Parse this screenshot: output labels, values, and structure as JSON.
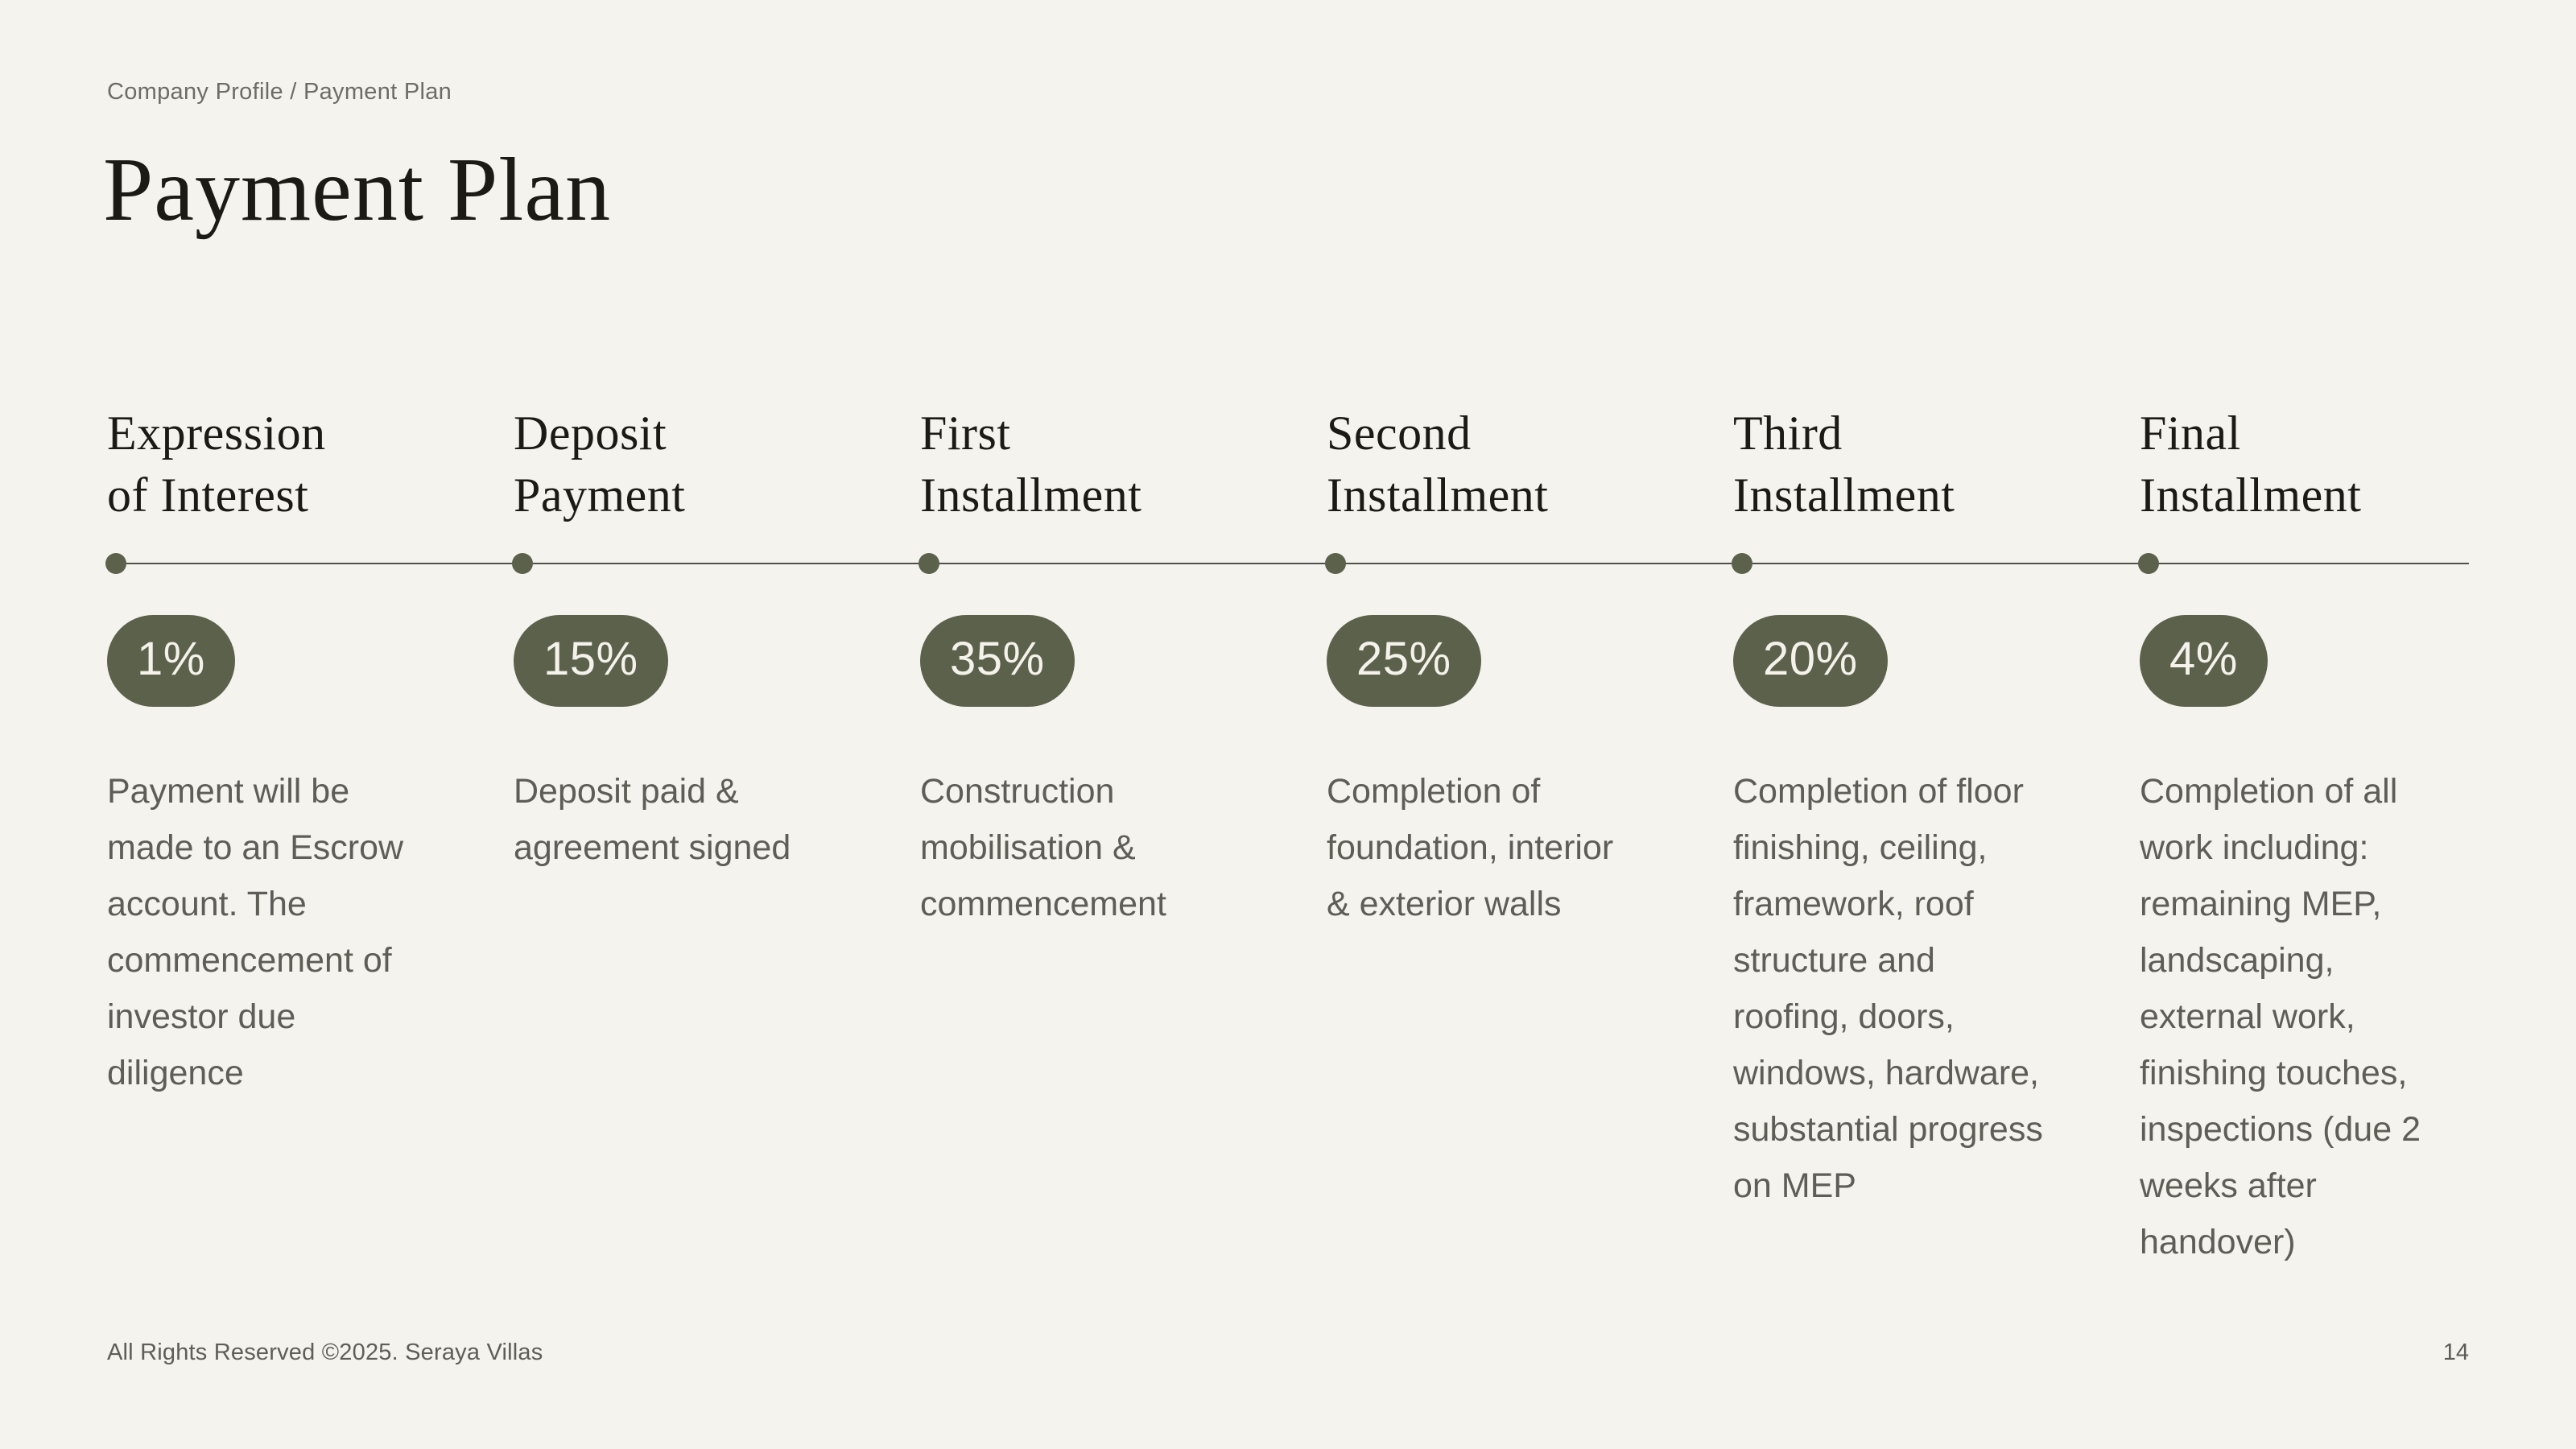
{
  "page": {
    "breadcrumb": "Company Profile / Payment Plan",
    "title": "Payment Plan",
    "footer": "All Rights Reserved ©2025. Seraya Villas",
    "page_number": "14"
  },
  "colors": {
    "background": "#f5f3ee",
    "accent_olive": "#5c614c",
    "badge_text": "#f4f2ea",
    "heading_text": "#1b1a15",
    "body_text": "#5e5d56",
    "breadcrumb_text": "#6d6c66",
    "timeline_line": "#51504a"
  },
  "timeline": {
    "stages": [
      {
        "title": "Expression\nof Interest",
        "percent": "1%",
        "description": "Payment will be made to an Escrow account. The commencement of investor due diligence"
      },
      {
        "title": "Deposit\nPayment",
        "percent": "15%",
        "description": "Deposit paid & agreement signed"
      },
      {
        "title": "First\nInstallment",
        "percent": "35%",
        "description": "Construction mobilisation & commencement"
      },
      {
        "title": "Second\nInstallment",
        "percent": "25%",
        "description": "Completion of foundation, interior & exterior walls"
      },
      {
        "title": "Third\nInstallment",
        "percent": "20%",
        "description": "Completion of floor finishing, ceiling, framework, roof structure and roofing, doors, windows, hardware, substantial progress on MEP"
      },
      {
        "title": "Final\nInstallment",
        "percent": "4%",
        "description": "Completion of all work including: remaining MEP, landscaping, external work, finishing touches, inspections (due 2 weeks after handover)"
      }
    ]
  }
}
